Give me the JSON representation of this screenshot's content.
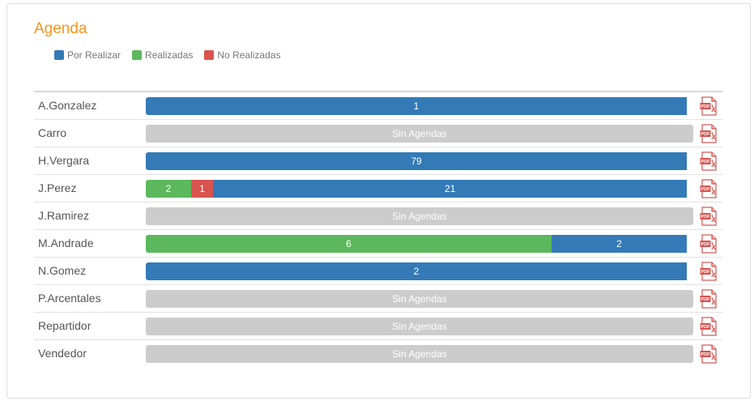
{
  "title": "Agenda",
  "colors": {
    "por_realizar": "#337ab7",
    "realizadas": "#5cb85c",
    "no_realizadas": "#d9534f",
    "empty": "#cccccc"
  },
  "legend": [
    {
      "label": "Por Realizar",
      "color": "#337ab7"
    },
    {
      "label": "Realizadas",
      "color": "#5cb85c"
    },
    {
      "label": "No Realizadas",
      "color": "#d9534f"
    }
  ],
  "rows": [
    {
      "name": "A.Gonzalez",
      "realizadas": 0,
      "no_realizadas": 0,
      "por_realizar": 1
    },
    {
      "name": "Carro",
      "realizadas": 0,
      "no_realizadas": 0,
      "por_realizar": 0
    },
    {
      "name": "H.Vergara",
      "realizadas": 0,
      "no_realizadas": 0,
      "por_realizar": 79
    },
    {
      "name": "J.Perez",
      "realizadas": 2,
      "no_realizadas": 1,
      "por_realizar": 21
    },
    {
      "name": "J.Ramirez",
      "realizadas": 0,
      "no_realizadas": 0,
      "por_realizar": 0
    },
    {
      "name": "M.Andrade",
      "realizadas": 6,
      "no_realizadas": 0,
      "por_realizar": 2
    },
    {
      "name": "N.Gomez",
      "realizadas": 0,
      "no_realizadas": 0,
      "por_realizar": 2
    },
    {
      "name": "P.Arcentales",
      "realizadas": 0,
      "no_realizadas": 0,
      "por_realizar": 0
    },
    {
      "name": "Repartidor",
      "realizadas": 0,
      "no_realizadas": 0,
      "por_realizar": 0
    },
    {
      "name": "Vendedor",
      "realizadas": 0,
      "no_realizadas": 0,
      "por_realizar": 0
    }
  ],
  "empty_label": "Sin Agendas",
  "pdf_icon": "pdf-icon"
}
